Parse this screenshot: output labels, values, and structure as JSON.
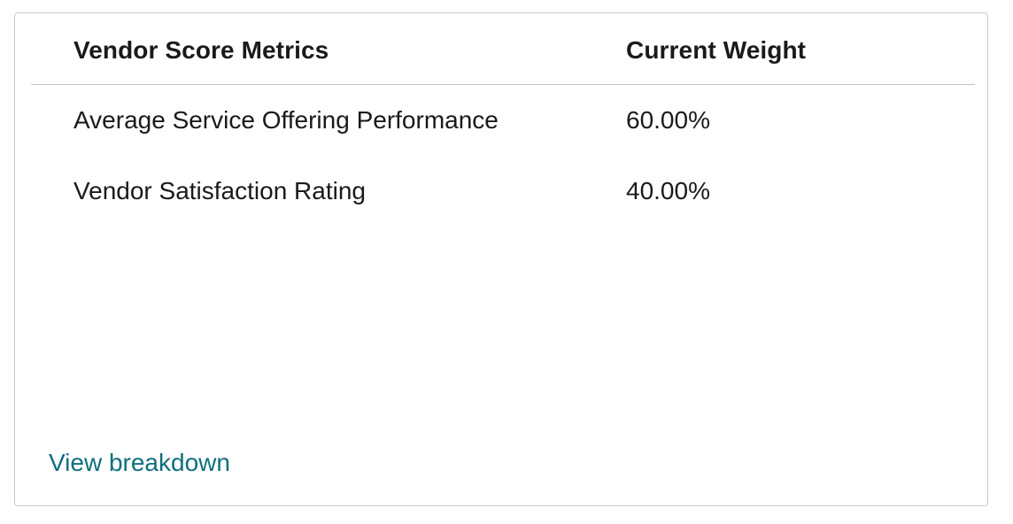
{
  "table": {
    "headers": {
      "metric": "Vendor Score Metrics",
      "weight": "Current Weight"
    },
    "rows": [
      {
        "metric": "Average Service Offering Performance",
        "weight": "60.00%"
      },
      {
        "metric": "Vendor Satisfaction Rating",
        "weight": "40.00%"
      }
    ]
  },
  "footer": {
    "link_label": "View breakdown"
  },
  "colors": {
    "link": "#0e6f7d",
    "border": "#c9c9c9",
    "text": "#1a1a1a"
  }
}
